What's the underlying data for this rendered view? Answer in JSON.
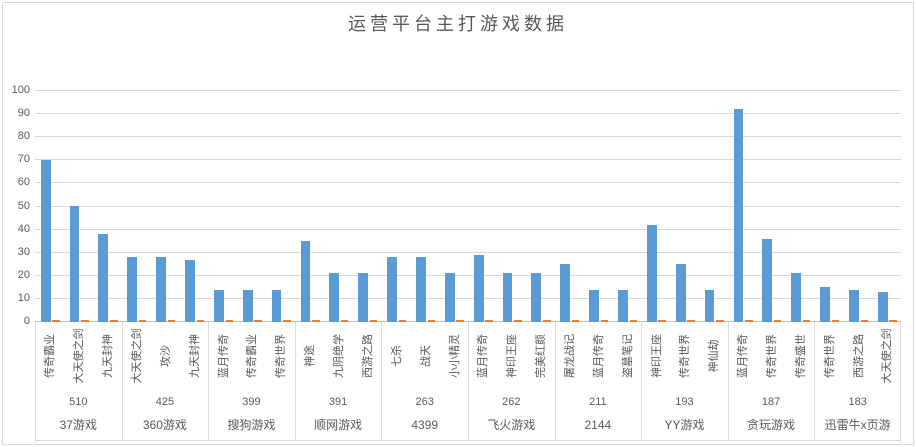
{
  "colors": {
    "bar": "#5b9bd5",
    "marker": "#ed7d31",
    "grid": "#d9d9d9",
    "axis": "#bfbfbf",
    "text": "#595959"
  },
  "chart_data": {
    "type": "bar",
    "title": "运营平台主打游戏数据",
    "xlabel": "",
    "ylabel": "",
    "ylim": [
      0,
      100
    ],
    "ytick_step": 10,
    "grid": true,
    "legend": "none",
    "series_info": [
      {
        "name": "main-value",
        "color": "#5b9bd5"
      },
      {
        "name": "marker",
        "color": "#ed7d31"
      }
    ],
    "marker_value": 1,
    "groups": [
      {
        "platform": "37游戏",
        "total": "510",
        "games": [
          "传奇霸业",
          "大天使之剑",
          "九天封神"
        ],
        "values": [
          70,
          50,
          38
        ]
      },
      {
        "platform": "360游戏",
        "total": "425",
        "games": [
          "大天使之剑",
          "攻沙",
          "九天封神"
        ],
        "values": [
          28,
          28,
          27
        ]
      },
      {
        "platform": "搜狗游戏",
        "total": "399",
        "games": [
          "蓝月传奇",
          "传奇霸业",
          "传奇世界"
        ],
        "values": [
          14,
          14,
          14
        ]
      },
      {
        "platform": "顺网游戏",
        "total": "391",
        "games": [
          "神途",
          "九阴绝学",
          "西游之路"
        ],
        "values": [
          35,
          21,
          21
        ]
      },
      {
        "platform": "4399",
        "total": "263",
        "games": [
          "七杀",
          "战天",
          "小小精灵"
        ],
        "values": [
          28,
          28,
          21
        ]
      },
      {
        "platform": "飞火游戏",
        "total": "262",
        "games": [
          "蓝月传奇",
          "神印王座",
          "完美红颜"
        ],
        "values": [
          29,
          21,
          21
        ]
      },
      {
        "platform": "2144",
        "total": "211",
        "games": [
          "屠龙战记",
          "蓝月传奇",
          "盗墓笔记"
        ],
        "values": [
          25,
          14,
          14
        ]
      },
      {
        "platform": "YY游戏",
        "total": "193",
        "games": [
          "神印王座",
          "传奇世界",
          "神仙劫"
        ],
        "values": [
          42,
          25,
          14
        ]
      },
      {
        "platform": "贪玩游戏",
        "total": "187",
        "games": [
          "蓝月传奇",
          "传奇世界",
          "传奇盛世"
        ],
        "values": [
          92,
          36,
          21
        ]
      },
      {
        "platform": "迅雷牛x页游",
        "total": "183",
        "games": [
          "传奇世界",
          "西游之路",
          "大天使之剑"
        ],
        "values": [
          15,
          14,
          13
        ]
      }
    ]
  }
}
